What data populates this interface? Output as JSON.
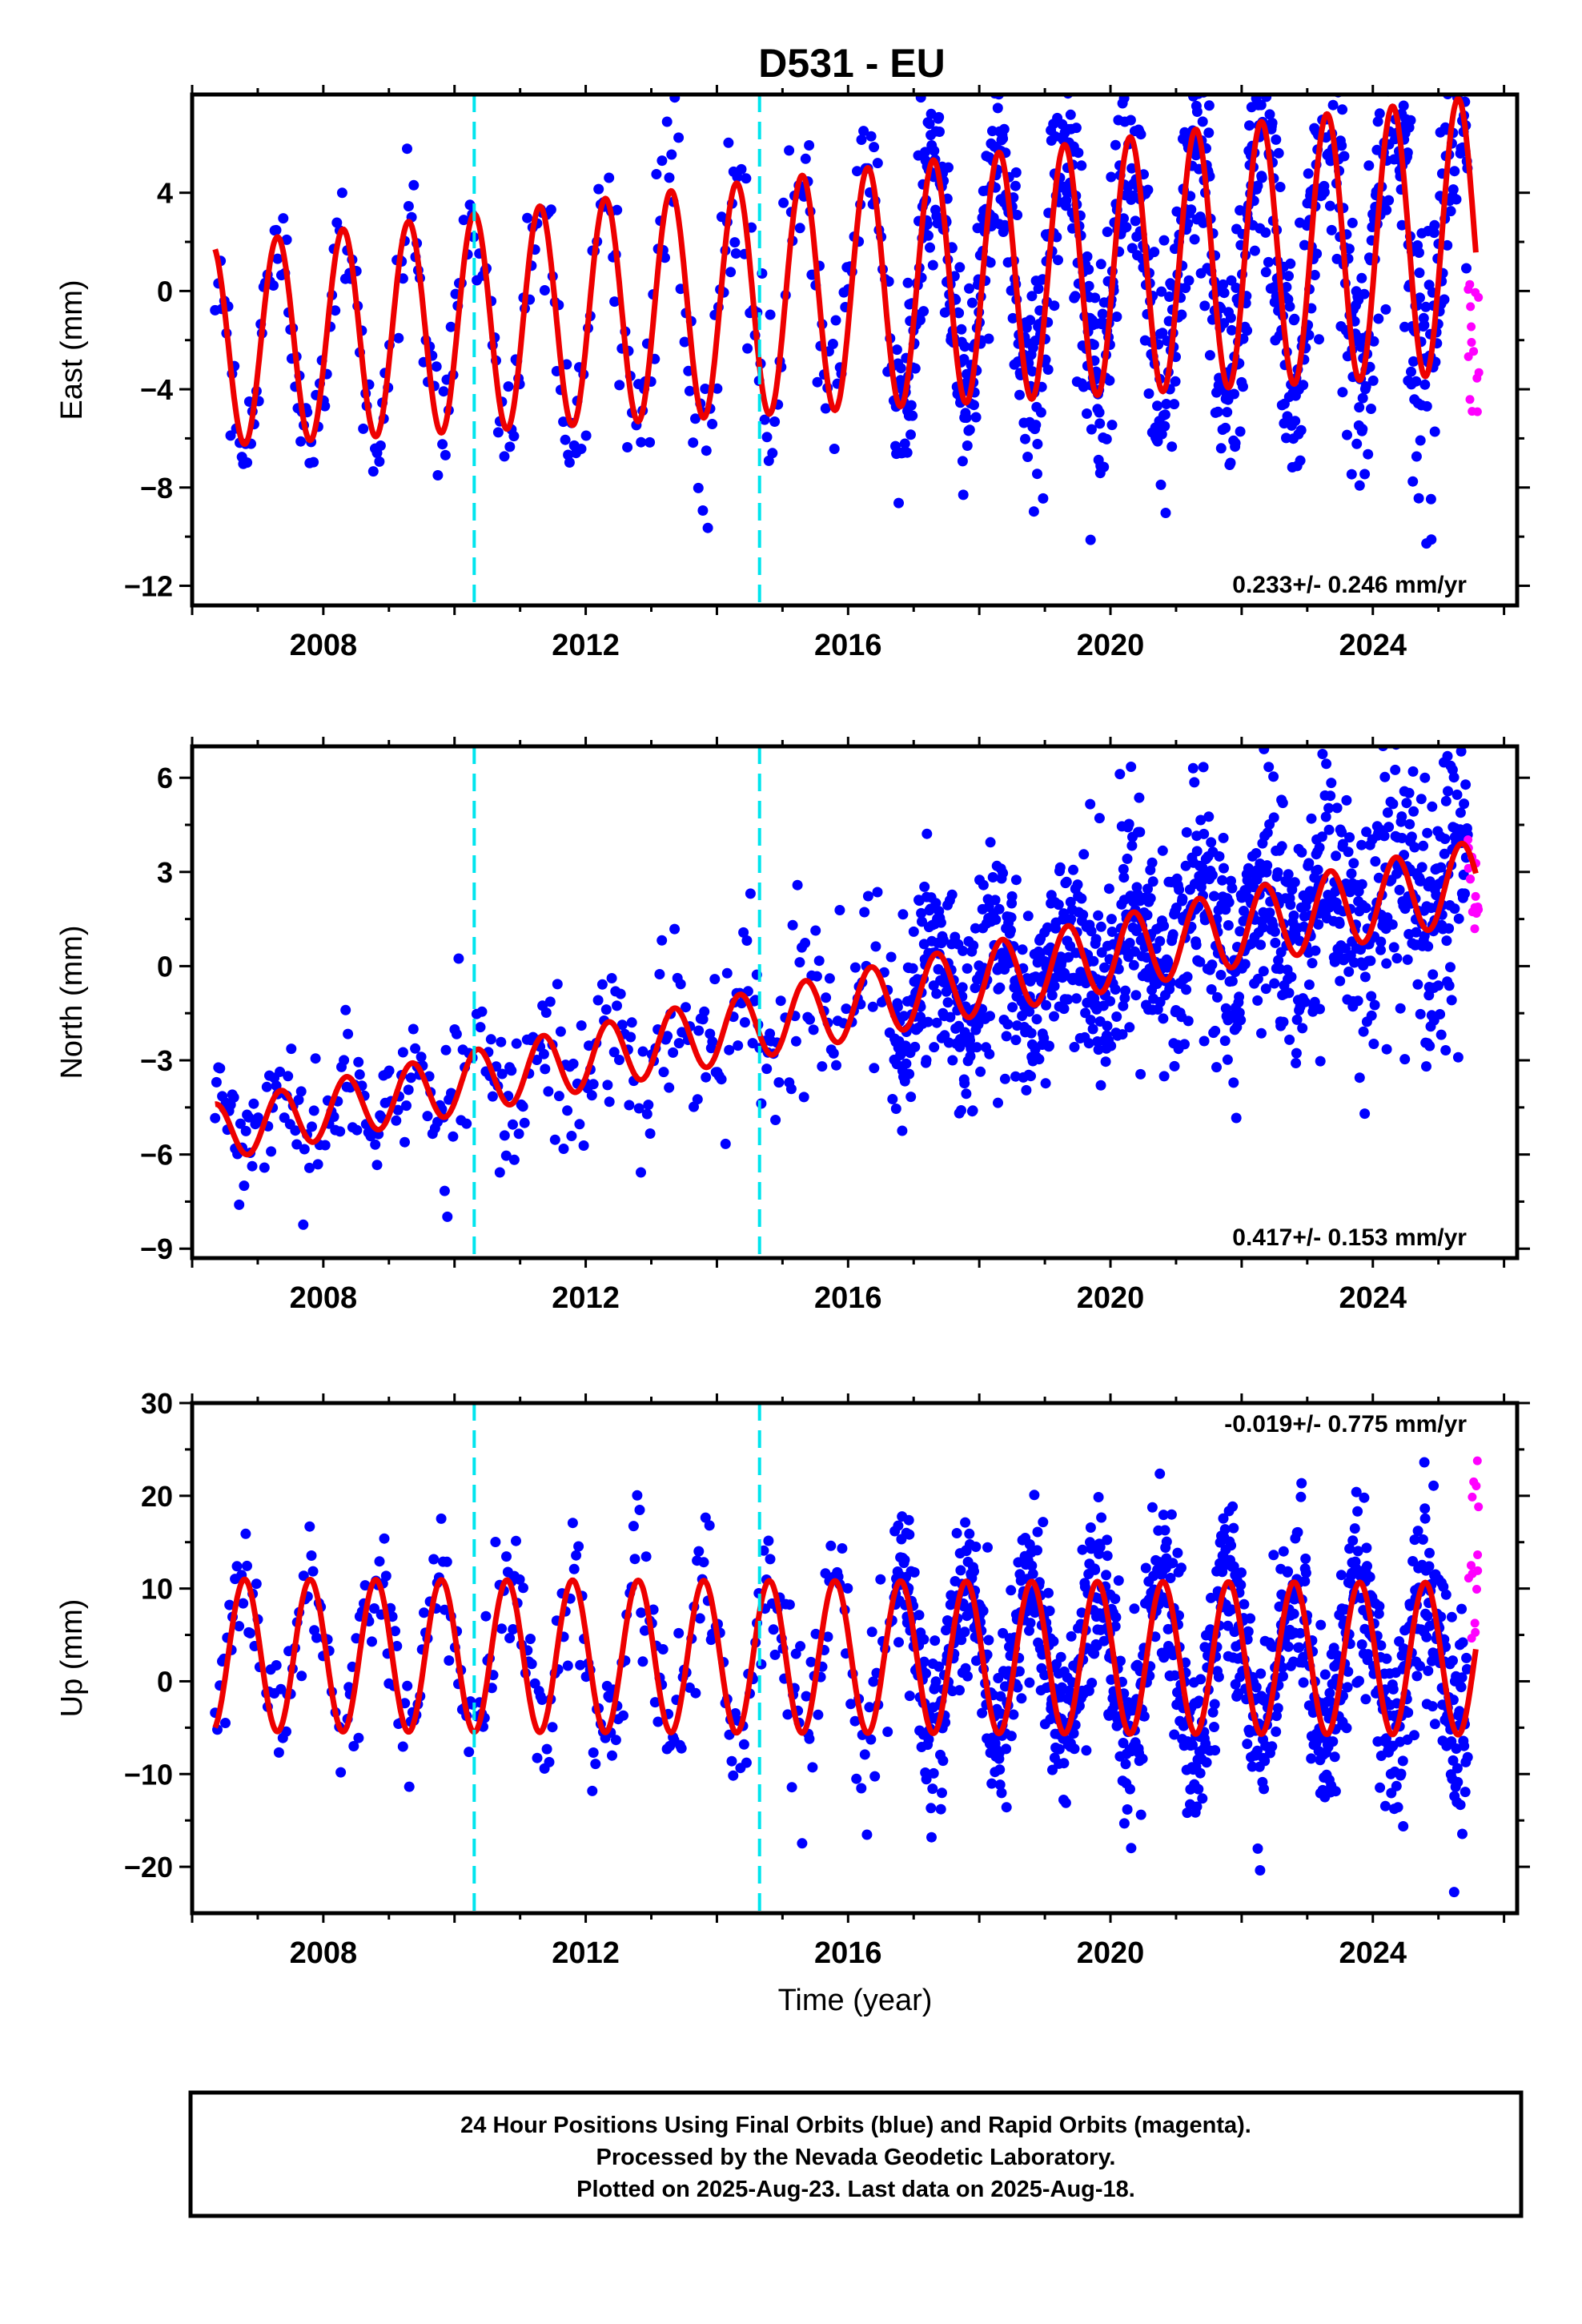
{
  "chart_data": {
    "title": "D531 - EU",
    "type": "scatter",
    "xlabel": "Time (year)",
    "xlim": [
      2006.0,
      2026.2
    ],
    "x_ticks": [
      2008,
      2012,
      2016,
      2020,
      2024
    ],
    "vertical_lines": [
      2010.3,
      2014.65
    ],
    "vertical_line_color": "#00e5ee",
    "point_color_final": "#0000ff",
    "point_color_rapid": "#ff00ff",
    "model_color": "#ee0000",
    "panels": [
      {
        "ylabel": "East (mm)",
        "ylim": [
          -12.8,
          8.0
        ],
        "y_ticks": [
          -12,
          -8,
          -4,
          0,
          4
        ],
        "rate": "0.233+/- 0.246 mm/yr",
        "model": {
          "offset": -2.2,
          "trend": 0.233,
          "annual_amp": 4.1,
          "annual_amp_growth": 0.08,
          "phase_year": 0.05,
          "noise_start": 0.9,
          "noise_growth": 0.11
        },
        "data_start": 2006.35,
        "data_end": 2025.45,
        "rapid_start": 2025.45,
        "rapid_end": 2025.62,
        "rapid_range": [
          -5.0,
          0.6
        ]
      },
      {
        "ylabel": "North (mm)",
        "ylim": [
          -9.3,
          7.0
        ],
        "y_ticks": [
          -9,
          -6,
          -3,
          0,
          3,
          6
        ],
        "rate": "0.417+/- 0.153 mm/yr",
        "model": {
          "offset": -5.3,
          "trend": 0.417,
          "annual_amp": 0.9,
          "annual_amp_growth": 0.02,
          "phase_year": 0.1,
          "noise_start": 0.9,
          "noise_growth": 0.06
        },
        "data_start": 2006.35,
        "data_end": 2025.45,
        "rapid_start": 2025.45,
        "rapid_end": 2025.62,
        "rapid_range": [
          1.0,
          4.2
        ]
      },
      {
        "ylabel": "Up (mm)",
        "ylim": [
          -25.0,
          30.0
        ],
        "y_ticks": [
          -20,
          -10,
          0,
          10,
          20,
          30
        ],
        "rate": "-0.019+/- 0.775 mm/yr",
        "model": {
          "offset": 2.8,
          "trend": -0.019,
          "annual_amp": 8.2,
          "annual_amp_growth": 0.0,
          "phase_year": 0.55,
          "noise_start": 3.2,
          "noise_growth": 0.12
        },
        "data_start": 2006.35,
        "data_end": 2025.45,
        "rapid_start": 2025.45,
        "rapid_end": 2025.62,
        "rapid_range": [
          4.0,
          25.0
        ]
      }
    ]
  },
  "footer": {
    "line1": "24 Hour Positions Using Final Orbits (blue) and Rapid Orbits (magenta).",
    "line2": "Processed by the Nevada Geodetic Laboratory.",
    "line3": "Plotted on 2025-Aug-23. Last data on 2025-Aug-18."
  }
}
